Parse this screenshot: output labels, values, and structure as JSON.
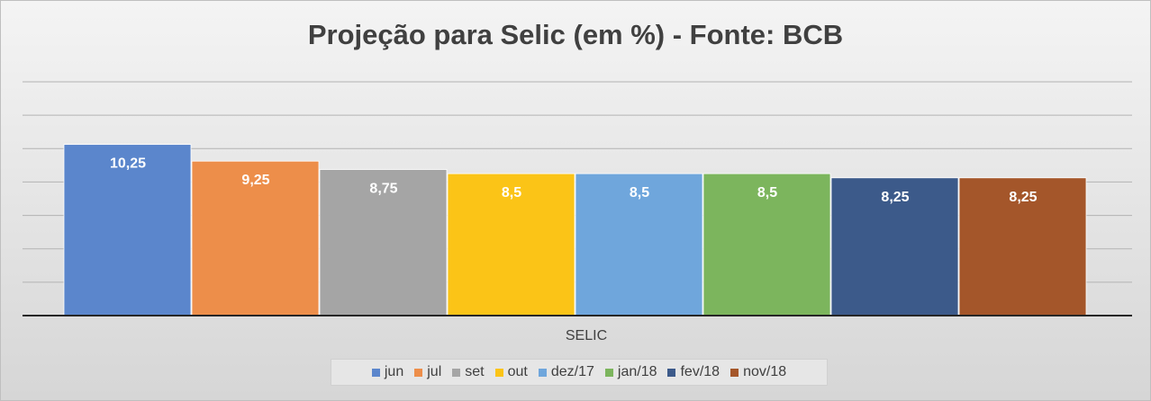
{
  "chart_data": {
    "type": "bar",
    "title": "Projeção para Selic (em %) - Fonte: BCB",
    "categories": [
      "SELIC"
    ],
    "series": [
      {
        "name": "jun",
        "values": [
          10.25
        ],
        "label": "10,25",
        "color": "#5b86cc"
      },
      {
        "name": "jul",
        "values": [
          9.25
        ],
        "label": "9,25",
        "color": "#ed8e4a"
      },
      {
        "name": "set",
        "values": [
          8.75
        ],
        "label": "8,75",
        "color": "#a5a5a5"
      },
      {
        "name": "out",
        "values": [
          8.5
        ],
        "label": "8,5",
        "color": "#fbc417"
      },
      {
        "name": "dez/17",
        "values": [
          8.5
        ],
        "label": "8,5",
        "color": "#6fa6dc"
      },
      {
        "name": "jan/18",
        "values": [
          8.5
        ],
        "label": "8,5",
        "color": "#7cb55d"
      },
      {
        "name": "fev/18",
        "values": [
          8.25
        ],
        "label": "8,25",
        "color": "#3c5a8a"
      },
      {
        "name": "nov/18",
        "values": [
          8.25
        ],
        "label": "8,25",
        "color": "#a4562a"
      }
    ],
    "ylim": [
      0,
      14
    ],
    "grid": true,
    "y_tick_labels_visible": false,
    "legend_position": "bottom"
  }
}
